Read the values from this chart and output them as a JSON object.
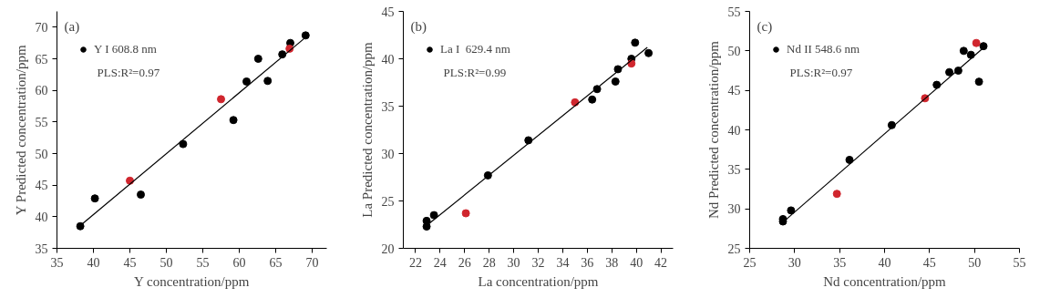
{
  "chart_data": [
    {
      "type": "scatter",
      "xlabel": "Y concentration/ppm",
      "ylabel": "Y Predicted concentration/ppm",
      "annotations": [
        "(a)",
        "PLS:R²=0.97"
      ],
      "xlim": [
        35,
        72
      ],
      "ylim": [
        35,
        72.5
      ],
      "xticks": [
        35,
        40,
        45,
        50,
        55,
        60,
        65,
        70
      ],
      "yticks": [
        35,
        40,
        45,
        50,
        55,
        60,
        65,
        70
      ],
      "grid": false,
      "legend": "top left",
      "series": [
        {
          "name": "Y I 608.8 nm",
          "marker": "circle",
          "color": "#000000",
          "x": [
            38.2,
            40.2,
            46.5,
            52.3,
            59.2,
            61.0,
            62.6,
            63.9,
            65.9,
            67.0,
            69.1
          ],
          "values": [
            38.5,
            42.9,
            43.5,
            51.5,
            55.3,
            61.4,
            65.0,
            61.5,
            65.7,
            67.5,
            68.7
          ]
        },
        {
          "marker": "circle",
          "color": "#d0262e",
          "x": [
            45.0,
            57.5,
            66.9
          ],
          "values": [
            45.7,
            58.6,
            66.6
          ]
        },
        {
          "type": "line",
          "color": "#000000",
          "x": [
            38.2,
            69.0
          ],
          "values": [
            38.6,
            68.3
          ]
        }
      ]
    },
    {
      "type": "scatter",
      "xlabel": "La concentration/ppm",
      "ylabel": "La Predicted concentration/ppm",
      "annotations": [
        "(b)",
        "PLS:R²=0.99"
      ],
      "xlim": [
        21,
        43
      ],
      "ylim": [
        20,
        45
      ],
      "xticks": [
        22,
        24,
        26,
        28,
        30,
        32,
        34,
        36,
        38,
        40,
        42
      ],
      "yticks": [
        20,
        25,
        30,
        35,
        40,
        45
      ],
      "grid": false,
      "legend": "top left",
      "series": [
        {
          "name": "La I  629.4 nm",
          "marker": "circle",
          "color": "#000000",
          "x": [
            22.9,
            22.9,
            23.5,
            27.9,
            31.2,
            36.4,
            36.8,
            38.3,
            38.5,
            39.6,
            39.9,
            41.0
          ],
          "values": [
            22.9,
            22.3,
            23.5,
            27.7,
            31.4,
            35.7,
            36.8,
            37.6,
            38.9,
            40.0,
            41.7,
            40.6
          ]
        },
        {
          "marker": "circle",
          "color": "#d0262e",
          "x": [
            26.1,
            35.0,
            39.6
          ],
          "values": [
            23.7,
            35.4,
            39.5
          ]
        },
        {
          "type": "line",
          "color": "#000000",
          "x": [
            22.9,
            40.9
          ],
          "values": [
            22.4,
            41.2
          ]
        }
      ]
    },
    {
      "type": "scatter",
      "xlabel": "Nd concentration/ppm",
      "ylabel": "Nd Predicted concentration/ppm",
      "annotations": [
        "(c)",
        "PLS:R²=0.97"
      ],
      "xlim": [
        25,
        55
      ],
      "ylim": [
        25,
        55
      ],
      "xticks": [
        25,
        30,
        35,
        40,
        45,
        50,
        55
      ],
      "yticks": [
        25,
        30,
        35,
        40,
        45,
        50,
        55
      ],
      "grid": false,
      "legend": "top left",
      "series": [
        {
          "name": "Nd II 548.6 nm",
          "marker": "circle",
          "color": "#000000",
          "x": [
            28.7,
            28.7,
            29.6,
            36.1,
            40.8,
            45.8,
            47.2,
            48.2,
            48.8,
            49.6,
            50.5,
            51.0
          ],
          "values": [
            28.7,
            28.4,
            29.8,
            36.2,
            40.6,
            45.7,
            47.3,
            47.5,
            50.0,
            49.5,
            46.1,
            50.6
          ]
        },
        {
          "marker": "circle",
          "color": "#d0262e",
          "x": [
            34.7,
            44.5,
            50.2
          ],
          "values": [
            31.9,
            44.0,
            51.0
          ]
        },
        {
          "type": "line",
          "color": "#000000",
          "x": [
            28.7,
            50.9
          ],
          "values": [
            28.3,
            50.3
          ]
        }
      ]
    }
  ]
}
